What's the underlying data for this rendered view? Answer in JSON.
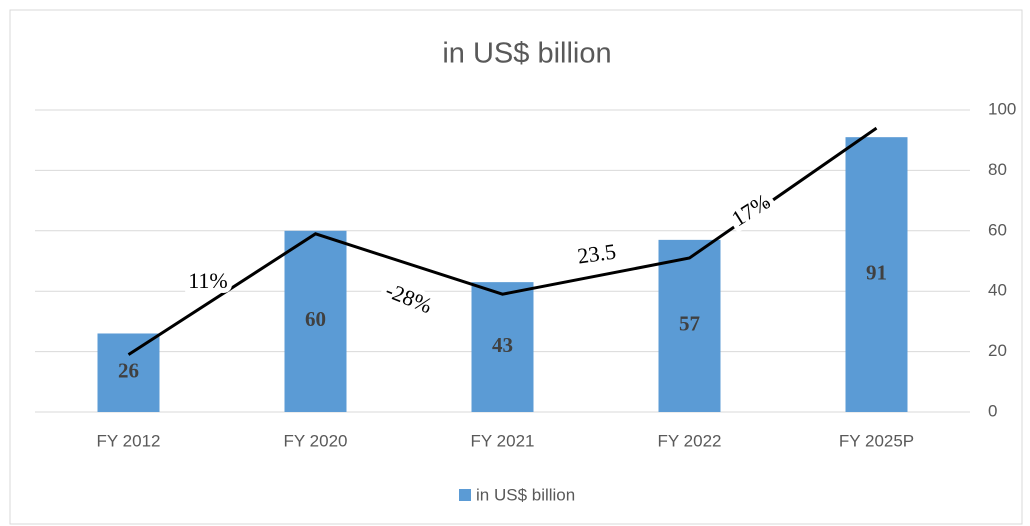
{
  "chart_data": {
    "type": "bar",
    "title": "in US$ billion",
    "categories": [
      "FY 2012",
      "FY 2020",
      "FY 2021",
      "FY 2022",
      "FY 2025P"
    ],
    "series": [
      {
        "name": "in US$ billion",
        "color": "#5b9bd5",
        "values": [
          26,
          60,
          43,
          57,
          91
        ]
      }
    ],
    "trend_line": {
      "color": "#000000",
      "values": [
        19,
        59,
        39,
        51,
        94
      ]
    },
    "annotations": [
      "11%",
      "-28%",
      "23.5",
      "17%"
    ],
    "ylim": [
      0,
      100
    ],
    "yticks": [
      0,
      20,
      40,
      60,
      80,
      100
    ],
    "grid": true,
    "y_axis_side": "right",
    "legend": "bottom"
  }
}
